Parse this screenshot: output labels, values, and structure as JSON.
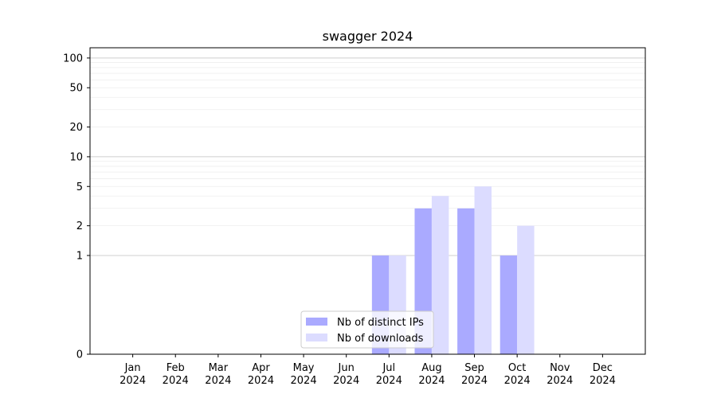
{
  "chart_data": {
    "type": "bar",
    "title": "swagger 2024",
    "xlabel": "",
    "ylabel": "",
    "categories": [
      [
        "Jan",
        "2024"
      ],
      [
        "Feb",
        "2024"
      ],
      [
        "Mar",
        "2024"
      ],
      [
        "Apr",
        "2024"
      ],
      [
        "May",
        "2024"
      ],
      [
        "Jun",
        "2024"
      ],
      [
        "Jul",
        "2024"
      ],
      [
        "Aug",
        "2024"
      ],
      [
        "Sep",
        "2024"
      ],
      [
        "Oct",
        "2024"
      ],
      [
        "Nov",
        "2024"
      ],
      [
        "Dec",
        "2024"
      ]
    ],
    "series": [
      {
        "name": "Nb of distinct IPs",
        "color": "#aaaaff",
        "values": [
          0,
          0,
          0,
          0,
          0,
          0,
          1,
          3,
          3,
          1,
          0,
          0
        ]
      },
      {
        "name": "Nb of downloads",
        "color": "#dcdcff",
        "values": [
          0,
          0,
          0,
          0,
          0,
          0,
          1,
          4,
          5,
          2,
          0,
          0
        ]
      }
    ],
    "yscale": "symlog",
    "ylim": [
      0,
      127
    ],
    "yticks": [
      {
        "value": 0,
        "label": "0"
      },
      {
        "value": 1,
        "label": "1"
      },
      {
        "value": 2,
        "label": "2"
      },
      {
        "value": 5,
        "label": "5"
      },
      {
        "value": 10,
        "label": "10"
      },
      {
        "value": 20,
        "label": "20"
      },
      {
        "value": 50,
        "label": "50"
      },
      {
        "value": 100,
        "label": "100"
      }
    ],
    "major_grid": [
      1,
      10,
      100
    ],
    "minor_grid": [
      2,
      3,
      4,
      5,
      6,
      7,
      8,
      9,
      20,
      30,
      40,
      50,
      60,
      70,
      80,
      90
    ],
    "grid": true,
    "legend_position": "bottom-center"
  }
}
